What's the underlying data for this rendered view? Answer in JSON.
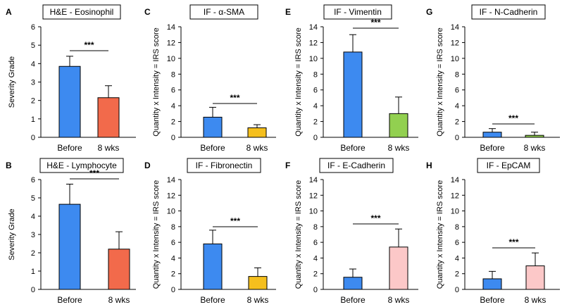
{
  "chart_data": [
    {
      "letter": "A",
      "type": "bar",
      "title": "H&E - Eosinophil",
      "ylabel": "Severity Grade",
      "ylim": [
        0,
        6
      ],
      "yticks": [
        0,
        1,
        2,
        3,
        4,
        5,
        6
      ],
      "categories": [
        "Before",
        "8 wks"
      ],
      "values": [
        3.85,
        2.15
      ],
      "errors": [
        0.55,
        0.65
      ],
      "colors": [
        "#3d8af0",
        "#f26a4b"
      ],
      "significance": "***"
    },
    {
      "letter": "B",
      "type": "bar",
      "title": "H&E - Lymphocyte",
      "ylabel": "Severity Grade",
      "ylim": [
        0,
        6
      ],
      "yticks": [
        0,
        1,
        2,
        3,
        4,
        5,
        6
      ],
      "categories": [
        "Before",
        "8 wks"
      ],
      "values": [
        4.65,
        2.2
      ],
      "errors": [
        1.1,
        0.95
      ],
      "colors": [
        "#3d8af0",
        "#f26a4b"
      ],
      "significance": "***"
    },
    {
      "letter": "C",
      "type": "bar",
      "title": "IF - α-SMA",
      "ylabel": "Quantity x Intensity = IRS score",
      "ylim": [
        0,
        14
      ],
      "yticks": [
        0,
        2,
        4,
        6,
        8,
        10,
        12,
        14
      ],
      "categories": [
        "Before",
        "8 wks"
      ],
      "values": [
        2.55,
        1.2
      ],
      "errors": [
        1.25,
        0.4
      ],
      "colors": [
        "#3d8af0",
        "#f5bf1d"
      ],
      "significance": "***"
    },
    {
      "letter": "D",
      "type": "bar",
      "title": "IF - Fibronectin",
      "ylabel": "Quantity x Intensity = IRS score",
      "ylim": [
        0,
        14
      ],
      "yticks": [
        0,
        2,
        4,
        6,
        8,
        10,
        12,
        14
      ],
      "categories": [
        "Before",
        "8 wks"
      ],
      "values": [
        5.8,
        1.65
      ],
      "errors": [
        1.75,
        1.1
      ],
      "colors": [
        "#3d8af0",
        "#f5bf1d"
      ],
      "significance": "***"
    },
    {
      "letter": "E",
      "type": "bar",
      "title": "IF - Vimentin",
      "ylabel": "Quantity x Intensity = IRS score",
      "ylim": [
        0,
        14
      ],
      "yticks": [
        0,
        2,
        4,
        6,
        8,
        10,
        12,
        14
      ],
      "categories": [
        "Before",
        "8 wks"
      ],
      "values": [
        10.8,
        3.0
      ],
      "errors": [
        2.2,
        2.1
      ],
      "colors": [
        "#3d8af0",
        "#92d050"
      ],
      "significance": "***"
    },
    {
      "letter": "F",
      "type": "bar",
      "title": "IF - E-Cadherin",
      "ylabel": "Quantity x Intensity = IRS score",
      "ylim": [
        0,
        14
      ],
      "yticks": [
        0,
        2,
        4,
        6,
        8,
        10,
        12,
        14
      ],
      "categories": [
        "Before",
        "8 wks"
      ],
      "values": [
        1.55,
        5.4
      ],
      "errors": [
        1.05,
        2.3
      ],
      "colors": [
        "#3d8af0",
        "#fcc8c8"
      ],
      "significance": "***"
    },
    {
      "letter": "G",
      "type": "bar",
      "title": "IF - N-Cadherin",
      "ylabel": "Quantity x Intensity = IRS score",
      "ylim": [
        0,
        14
      ],
      "yticks": [
        0,
        2,
        4,
        6,
        8,
        10,
        12,
        14
      ],
      "categories": [
        "Before",
        "8 wks"
      ],
      "values": [
        0.65,
        0.25
      ],
      "errors": [
        0.45,
        0.4
      ],
      "colors": [
        "#3d8af0",
        "#92d050"
      ],
      "significance": "***"
    },
    {
      "letter": "H",
      "type": "bar",
      "title": "IF - EpCAM",
      "ylabel": "Quantity x Intensity = IRS score",
      "ylim": [
        0,
        14
      ],
      "yticks": [
        0,
        2,
        4,
        6,
        8,
        10,
        12,
        14
      ],
      "categories": [
        "Before",
        "8 wks"
      ],
      "values": [
        1.35,
        3.0
      ],
      "errors": [
        0.95,
        1.65
      ],
      "colors": [
        "#3d8af0",
        "#fcc8c8"
      ],
      "significance": "***"
    }
  ]
}
